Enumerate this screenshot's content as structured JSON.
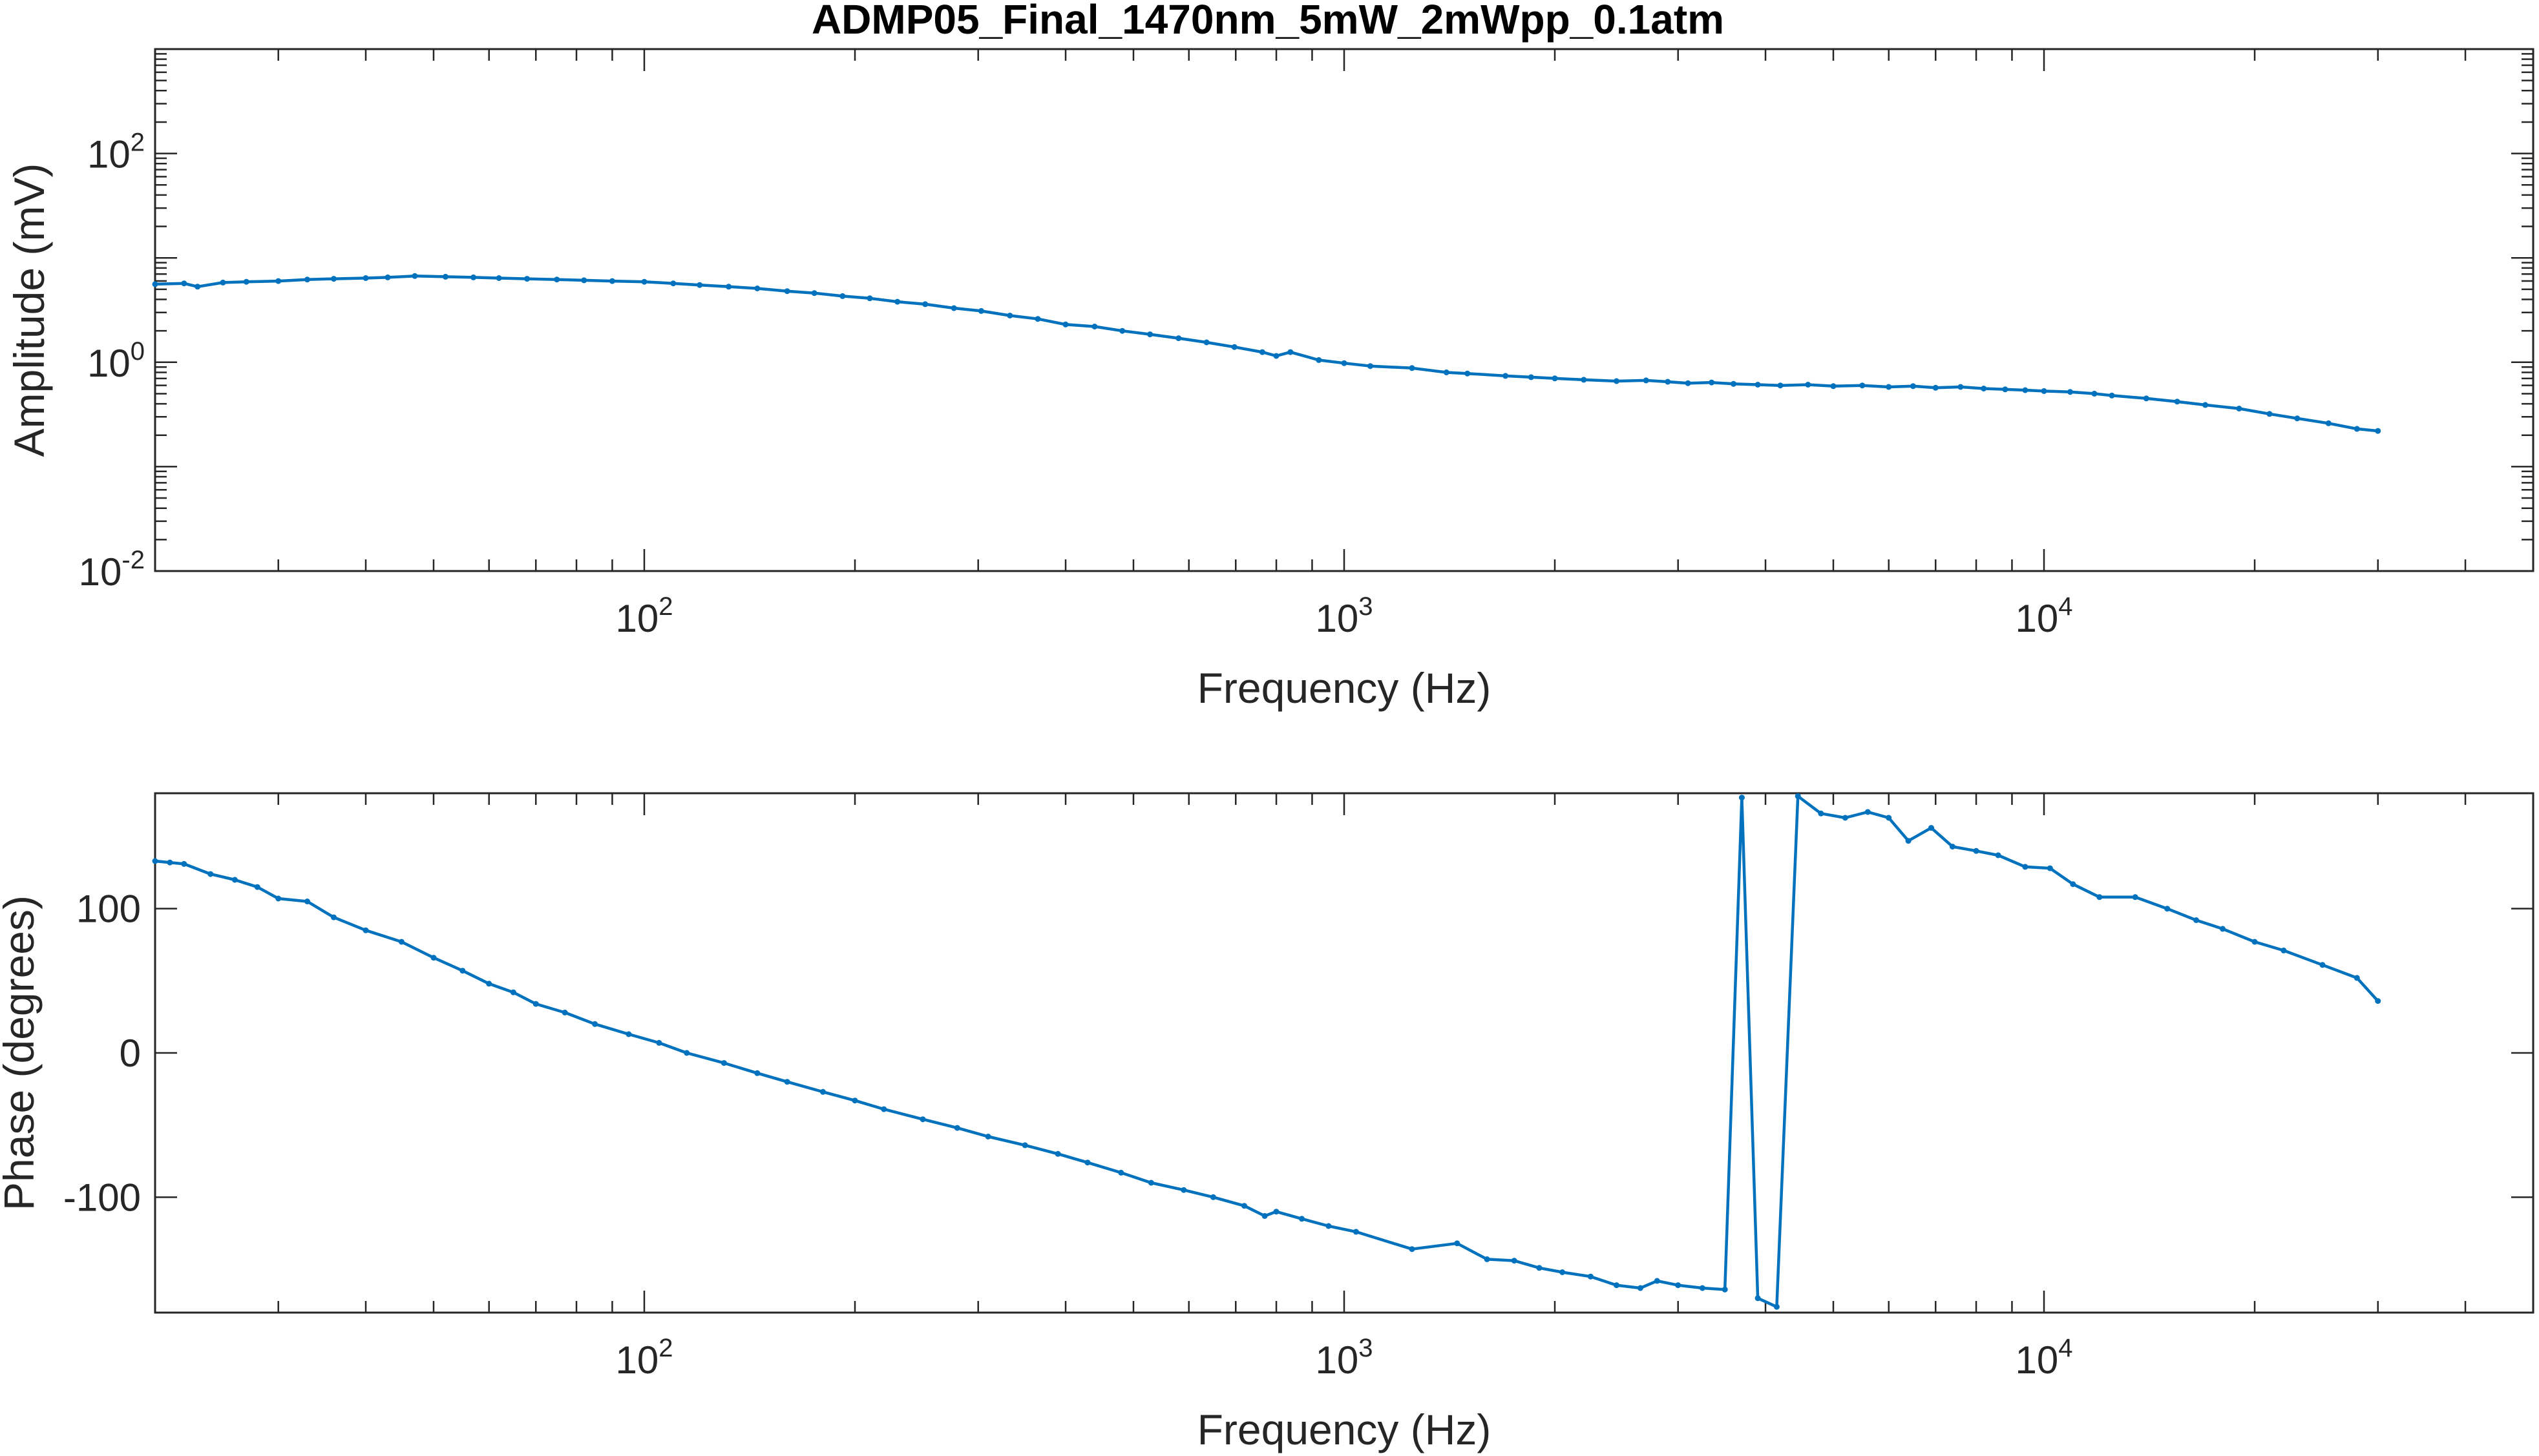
{
  "figure_title": "ADMP05_Final_1470nm_5mW_2mWpp_0.1atm",
  "colors": {
    "series": "#0072BD",
    "axes": "#262626",
    "background": "#FFFFFF"
  },
  "chart_data": [
    {
      "type": "line",
      "title": "ADMP05_Final_1470nm_5mW_2mWpp_0.1atm",
      "xlabel": "Frequency (Hz)",
      "ylabel": "Amplitude (mV)",
      "xscale": "log",
      "yscale": "log",
      "xlim": [
        20,
        50000
      ],
      "ylim": [
        0.01,
        1000
      ],
      "grid": false,
      "x_ticks": [
        {
          "value": 100,
          "base": "10",
          "exp": "2"
        },
        {
          "value": 1000,
          "base": "10",
          "exp": "3"
        },
        {
          "value": 10000,
          "base": "10",
          "exp": "4"
        }
      ],
      "y_ticks": [
        {
          "value": 0.01,
          "base": "10",
          "exp": "-2"
        },
        {
          "value": 1,
          "base": "10",
          "exp": "0"
        },
        {
          "value": 100,
          "base": "10",
          "exp": "2"
        }
      ],
      "series": [
        {
          "x": [
            20,
            22,
            23,
            25,
            27,
            30,
            33,
            36,
            40,
            43,
            47,
            52,
            57,
            62,
            68,
            75,
            82,
            90,
            100,
            110,
            120,
            132,
            145,
            160,
            175,
            192,
            210,
            230,
            252,
            277,
            303,
            333,
            365,
            400,
            440,
            482,
            528,
            580,
            636,
            697,
            764,
            800,
            838,
            920,
            1000,
            1090,
            1250,
            1400,
            1500,
            1700,
            1850,
            2000,
            2200,
            2450,
            2700,
            2900,
            3100,
            3350,
            3600,
            3900,
            4200,
            4600,
            5000,
            5500,
            6000,
            6500,
            7000,
            7600,
            8200,
            8800,
            9400,
            10000,
            10900,
            11800,
            12500,
            14000,
            15500,
            17000,
            19000,
            21000,
            23000,
            25500,
            28000,
            30000
          ],
          "y": [
            5.6,
            5.7,
            5.3,
            5.8,
            5.9,
            6.0,
            6.2,
            6.3,
            6.4,
            6.5,
            6.7,
            6.6,
            6.5,
            6.4,
            6.3,
            6.2,
            6.1,
            6.0,
            5.9,
            5.7,
            5.5,
            5.3,
            5.1,
            4.8,
            4.6,
            4.3,
            4.1,
            3.8,
            3.6,
            3.3,
            3.1,
            2.8,
            2.6,
            2.3,
            2.2,
            2.0,
            1.85,
            1.7,
            1.55,
            1.4,
            1.25,
            1.15,
            1.25,
            1.05,
            0.98,
            0.92,
            0.88,
            0.8,
            0.78,
            0.74,
            0.72,
            0.7,
            0.68,
            0.66,
            0.67,
            0.65,
            0.63,
            0.64,
            0.62,
            0.61,
            0.6,
            0.61,
            0.59,
            0.6,
            0.58,
            0.59,
            0.57,
            0.58,
            0.56,
            0.55,
            0.54,
            0.53,
            0.52,
            0.5,
            0.48,
            0.45,
            0.42,
            0.39,
            0.36,
            0.32,
            0.29,
            0.26,
            0.23,
            0.22
          ]
        }
      ]
    },
    {
      "type": "line",
      "xlabel": "Frequency (Hz)",
      "ylabel": "Phase (degrees)",
      "xscale": "log",
      "yscale": "linear",
      "xlim": [
        20,
        50000
      ],
      "ylim": [
        -180,
        180
      ],
      "grid": false,
      "x_ticks": [
        {
          "value": 100,
          "base": "10",
          "exp": "2"
        },
        {
          "value": 1000,
          "base": "10",
          "exp": "3"
        },
        {
          "value": 10000,
          "base": "10",
          "exp": "4"
        }
      ],
      "y_ticks": [
        {
          "value": -100,
          "label": "-100"
        },
        {
          "value": 0,
          "label": "0"
        },
        {
          "value": 100,
          "label": "100"
        }
      ],
      "series": [
        {
          "x": [
            20,
            21,
            22,
            24,
            26,
            28,
            30,
            33,
            36,
            40,
            45,
            50,
            55,
            60,
            65,
            70,
            77,
            85,
            95,
            105,
            115,
            130,
            145,
            160,
            180,
            200,
            220,
            250,
            280,
            310,
            350,
            390,
            430,
            480,
            530,
            590,
            650,
            720,
            770,
            800,
            870,
            950,
            1040,
            1250,
            1450,
            1600,
            1750,
            1900,
            2050,
            2250,
            2450,
            2650,
            2800,
            3000,
            3250,
            3500,
            3700,
            3900,
            4150,
            4450,
            4800,
            5200,
            5600,
            6000,
            6400,
            6900,
            7400,
            8000,
            8600,
            9400,
            10200,
            11000,
            12000,
            13500,
            15000,
            16500,
            18000,
            20000,
            22000,
            25000,
            28000,
            30000
          ],
          "y": [
            133,
            132,
            131,
            124,
            120,
            115,
            107,
            105,
            94,
            85,
            77,
            66,
            57,
            48,
            42,
            34,
            28,
            20,
            13,
            7,
            0,
            -7,
            -14,
            -20,
            -27,
            -33,
            -39,
            -46,
            -52,
            -58,
            -64,
            -70,
            -76,
            -83,
            -90,
            -95,
            -100,
            -106,
            -113,
            -110,
            -115,
            -120,
            -124,
            -136,
            -132,
            -143,
            -144,
            -149,
            -152,
            -155,
            -161,
            -163,
            -158,
            -161,
            -163,
            -164,
            177,
            -170,
            -176,
            178,
            166,
            163,
            167,
            163,
            147,
            156,
            143,
            140,
            137,
            129,
            128,
            117,
            108,
            108,
            100,
            92,
            86,
            77,
            71,
            61,
            52,
            36
          ]
        }
      ]
    }
  ]
}
